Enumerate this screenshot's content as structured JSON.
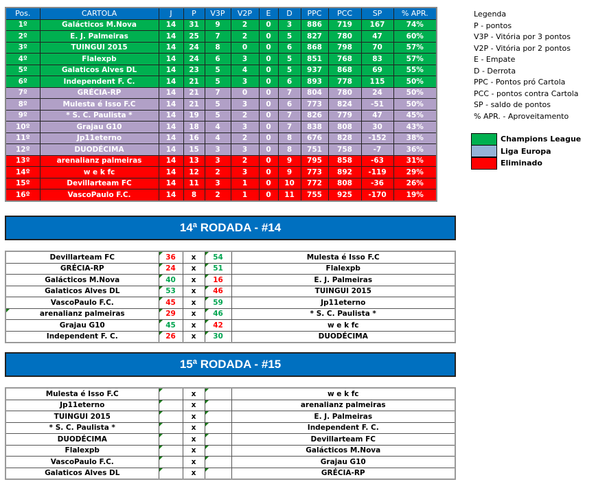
{
  "standings": {
    "headers": [
      "Pos.",
      "CARTOLA",
      "J",
      "P",
      "V3P",
      "V2P",
      "E",
      "D",
      "PPC",
      "PCC",
      "SP",
      "% APR."
    ],
    "rows": [
      {
        "zone": "g",
        "cells": [
          "1º",
          "Galácticos M.Nova",
          "14",
          "31",
          "9",
          "2",
          "0",
          "3",
          "886",
          "719",
          "167",
          "74%"
        ]
      },
      {
        "zone": "g",
        "cells": [
          "2º",
          "E. J. Palmeiras",
          "14",
          "25",
          "7",
          "2",
          "0",
          "5",
          "827",
          "780",
          "47",
          "60%"
        ]
      },
      {
        "zone": "g",
        "cells": [
          "3º",
          "TUINGUI 2015",
          "14",
          "24",
          "8",
          "0",
          "0",
          "6",
          "868",
          "798",
          "70",
          "57%"
        ]
      },
      {
        "zone": "g",
        "cells": [
          "4º",
          "Flalexpb",
          "14",
          "24",
          "6",
          "3",
          "0",
          "5",
          "851",
          "768",
          "83",
          "57%"
        ]
      },
      {
        "zone": "g",
        "cells": [
          "5º",
          "Galaticos Alves DL",
          "14",
          "23",
          "5",
          "4",
          "0",
          "5",
          "937",
          "868",
          "69",
          "55%"
        ]
      },
      {
        "zone": "g",
        "cells": [
          "6º",
          "Independent F. C.",
          "14",
          "21",
          "5",
          "3",
          "0",
          "6",
          "893",
          "778",
          "115",
          "50%"
        ]
      },
      {
        "zone": "p",
        "cells": [
          "7º",
          "GRÉCIA-RP",
          "14",
          "21",
          "7",
          "0",
          "0",
          "7",
          "804",
          "780",
          "24",
          "50%"
        ]
      },
      {
        "zone": "p",
        "cells": [
          "8º",
          "Mulesta é Isso F.C",
          "14",
          "21",
          "5",
          "3",
          "0",
          "6",
          "773",
          "824",
          "-51",
          "50%"
        ]
      },
      {
        "zone": "p",
        "cells": [
          "9º",
          "* S. C. Paulista *",
          "14",
          "19",
          "5",
          "2",
          "0",
          "7",
          "826",
          "779",
          "47",
          "45%"
        ]
      },
      {
        "zone": "p",
        "cells": [
          "10º",
          "Grajau G10",
          "14",
          "18",
          "4",
          "3",
          "0",
          "7",
          "838",
          "808",
          "30",
          "43%"
        ]
      },
      {
        "zone": "p",
        "cells": [
          "11º",
          "Jp11eterno",
          "14",
          "16",
          "4",
          "2",
          "0",
          "8",
          "676",
          "828",
          "-152",
          "38%"
        ]
      },
      {
        "zone": "p",
        "cells": [
          "12º",
          "DUODÉCIMA",
          "14",
          "15",
          "3",
          "3",
          "0",
          "8",
          "751",
          "758",
          "-7",
          "36%"
        ]
      },
      {
        "zone": "r",
        "cells": [
          "13º",
          "arenalianz palmeiras",
          "14",
          "13",
          "3",
          "2",
          "0",
          "9",
          "795",
          "858",
          "-63",
          "31%"
        ]
      },
      {
        "zone": "r",
        "cells": [
          "14º",
          "w e k fc",
          "14",
          "12",
          "2",
          "3",
          "0",
          "9",
          "773",
          "892",
          "-119",
          "29%"
        ]
      },
      {
        "zone": "r",
        "cells": [
          "15º",
          "Devillarteam FC",
          "14",
          "11",
          "3",
          "1",
          "0",
          "10",
          "772",
          "808",
          "-36",
          "26%"
        ]
      },
      {
        "zone": "r",
        "cells": [
          "16º",
          "VascoPaulo F.C.",
          "14",
          "8",
          "2",
          "1",
          "0",
          "11",
          "755",
          "925",
          "-170",
          "19%"
        ]
      }
    ]
  },
  "legend": {
    "lines": [
      "Legenda",
      "P - pontos",
      "V3P - Vitória por 3 pontos",
      "V2P - Vitória por 2 pontos",
      "E - Empate",
      "D - Derrota",
      "PPC - Pontos pró Cartola",
      "PCC - pontos contra Cartola",
      "SP - saldo de pontos",
      "% APR. - Aproveitamento"
    ],
    "zones": [
      {
        "label": "Champions League",
        "color": "#00b050"
      },
      {
        "label": "Liga Europa",
        "color": "#95b3d7"
      },
      {
        "label": "Eliminado",
        "color": "#ff0000"
      }
    ]
  },
  "round14": {
    "title": "14ª RODADA - #14",
    "vs": "x",
    "matches": [
      {
        "home": "Devillarteam FC",
        "hs": "36",
        "as": "54",
        "away": "Mulesta é Isso F.C"
      },
      {
        "home": "GRÉCIA-RP",
        "hs": "24",
        "as": "51",
        "away": "Flalexpb"
      },
      {
        "home": "Galácticos M.Nova",
        "hs": "40",
        "as": "16",
        "away": "E. J. Palmeiras"
      },
      {
        "home": "Galaticos Alves DL",
        "hs": "53",
        "as": "46",
        "away": "TUINGUI 2015"
      },
      {
        "home": "VascoPaulo F.C.",
        "hs": "45",
        "as": "59",
        "away": "Jp11eterno"
      },
      {
        "home": "arenalianz palmeiras",
        "hs": "29",
        "as": "46",
        "away": "* S. C. Paulista *"
      },
      {
        "home": "Grajau G10",
        "hs": "45",
        "as": "42",
        "away": "w e k fc"
      },
      {
        "home": "Independent F. C.",
        "hs": "26",
        "as": "30",
        "away": "DUODÉCIMA"
      }
    ]
  },
  "round15": {
    "title": "15ª RODADA - #15",
    "vs": "x",
    "matches": [
      {
        "home": "Mulesta é Isso F.C",
        "hs": "",
        "as": "",
        "away": "w e k fc"
      },
      {
        "home": "Jp11eterno",
        "hs": "",
        "as": "",
        "away": "arenalianz palmeiras"
      },
      {
        "home": "TUINGUI 2015",
        "hs": "",
        "as": "",
        "away": "E. J. Palmeiras"
      },
      {
        "home": "* S. C. Paulista *",
        "hs": "",
        "as": "",
        "away": "Independent F. C."
      },
      {
        "home": "DUODÉCIMA",
        "hs": "",
        "as": "",
        "away": "Devillarteam FC"
      },
      {
        "home": "Flalexpb",
        "hs": "",
        "as": "",
        "away": "Galácticos M.Nova"
      },
      {
        "home": "VascoPaulo F.C.",
        "hs": "",
        "as": "",
        "away": "Grajau G10"
      },
      {
        "home": "Galaticos Alves DL",
        "hs": "",
        "as": "",
        "away": "GRÉCIA-RP"
      }
    ]
  }
}
